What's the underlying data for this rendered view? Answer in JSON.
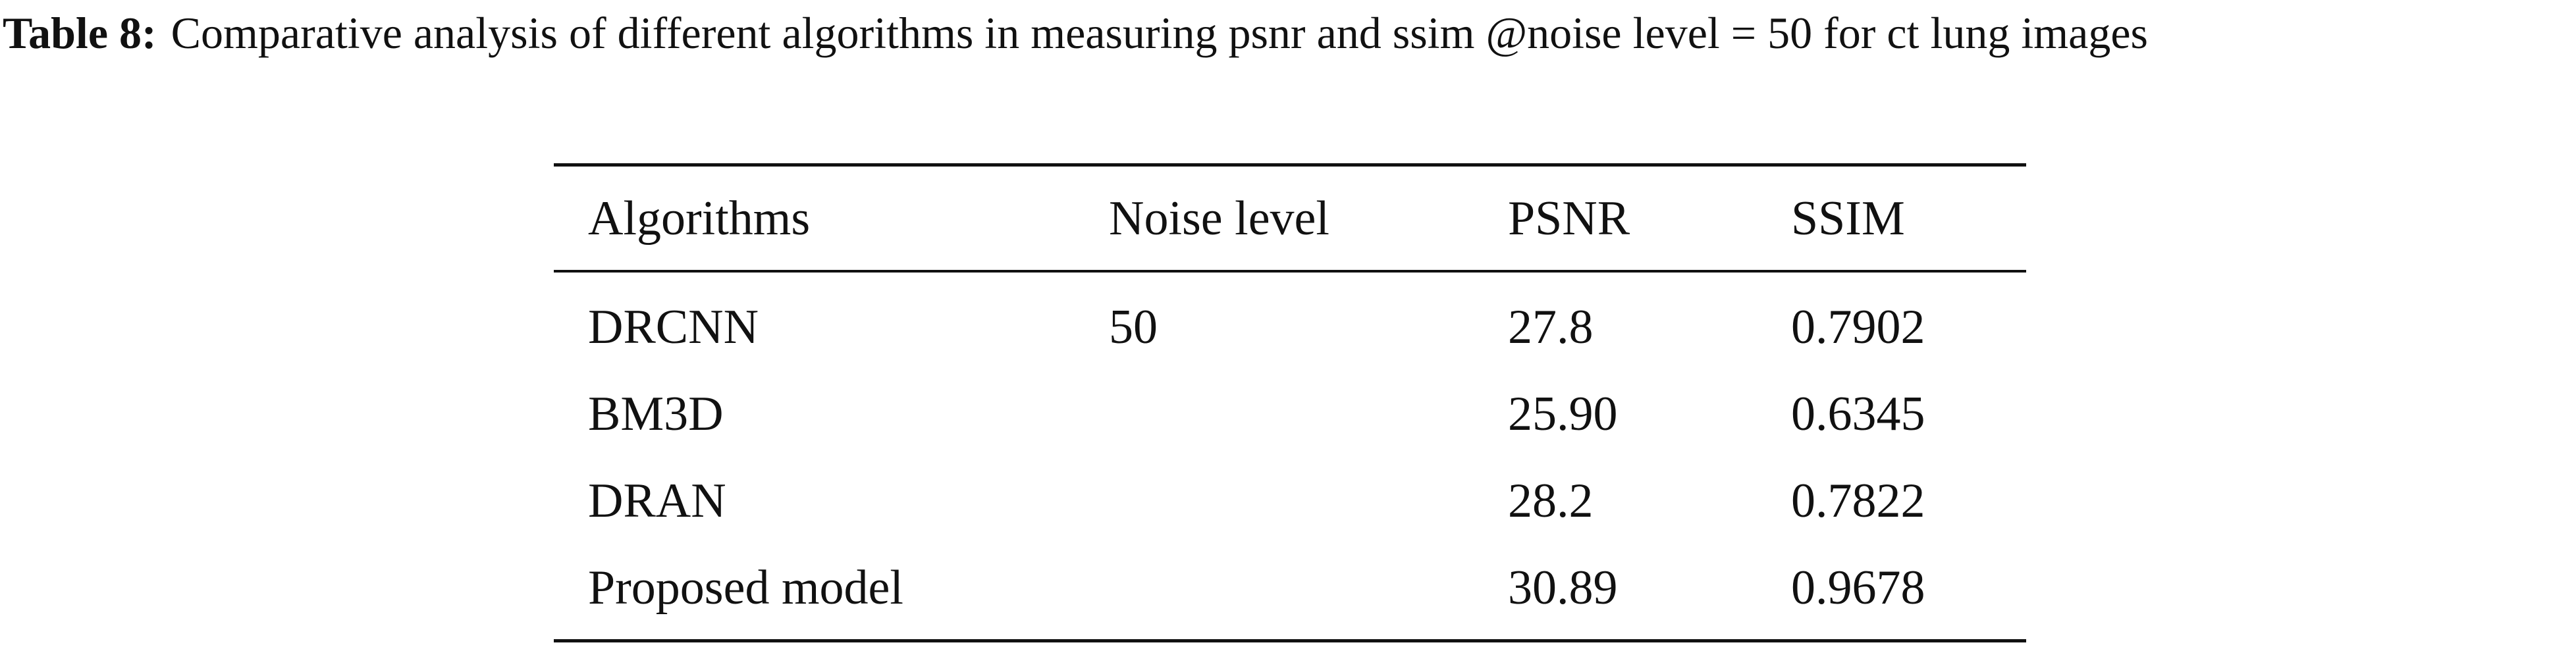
{
  "caption": {
    "label": "Table 8:",
    "text": "Comparative analysis of different algorithms in measuring psnr and ssim @noise level = 50 for ct lung images"
  },
  "table": {
    "header": [
      "Algorithms",
      "Noise level",
      "PSNR",
      "SSIM"
    ],
    "rows": [
      [
        "DRCNN",
        "50",
        "27.8",
        "0.7902"
      ],
      [
        "BM3D",
        null,
        "25.90",
        "0.6345"
      ],
      [
        "DRAN",
        null,
        "28.2",
        "0.7822"
      ],
      [
        "Proposed model",
        null,
        "30.89",
        "0.9678"
      ]
    ]
  }
}
